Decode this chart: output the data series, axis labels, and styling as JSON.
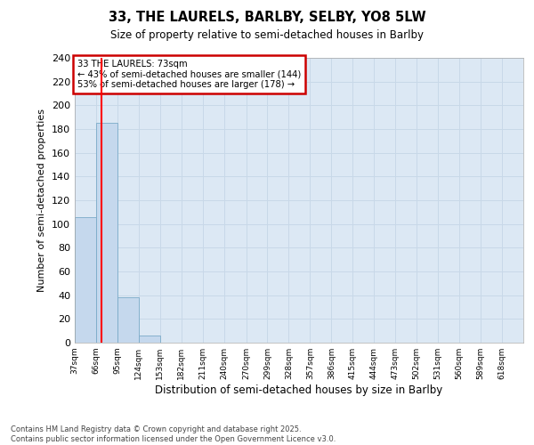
{
  "title1": "33, THE LAURELS, BARLBY, SELBY, YO8 5LW",
  "title2": "Size of property relative to semi-detached houses in Barlby",
  "xlabel": "Distribution of semi-detached houses by size in Barlby",
  "ylabel": "Number of semi-detached properties",
  "bin_labels": [
    "37sqm",
    "66sqm",
    "95sqm",
    "124sqm",
    "153sqm",
    "182sqm",
    "211sqm",
    "240sqm",
    "270sqm",
    "299sqm",
    "328sqm",
    "357sqm",
    "386sqm",
    "415sqm",
    "444sqm",
    "473sqm",
    "502sqm",
    "531sqm",
    "560sqm",
    "589sqm",
    "618sqm"
  ],
  "bin_edges": [
    37,
    66,
    95,
    124,
    153,
    182,
    211,
    240,
    270,
    299,
    328,
    357,
    386,
    415,
    444,
    473,
    502,
    531,
    560,
    589,
    618
  ],
  "bar_heights": [
    106,
    185,
    38,
    6,
    0,
    0,
    0,
    0,
    0,
    0,
    0,
    0,
    0,
    0,
    0,
    0,
    0,
    0,
    0,
    0
  ],
  "bar_color": "#c5d8ed",
  "bar_edge_color": "#7aaac8",
  "red_line_x": 73,
  "ylim": [
    0,
    240
  ],
  "yticks": [
    0,
    20,
    40,
    60,
    80,
    100,
    120,
    140,
    160,
    180,
    200,
    220,
    240
  ],
  "annotation_text": "33 THE LAURELS: 73sqm\n← 43% of semi-detached houses are smaller (144)\n53% of semi-detached houses are larger (178) →",
  "annotation_box_color": "#ffffff",
  "annotation_box_edge": "#cc0000",
  "footer_text": "Contains HM Land Registry data © Crown copyright and database right 2025.\nContains public sector information licensed under the Open Government Licence v3.0.",
  "grid_color": "#c8d8e8",
  "bg_color": "#dce8f4",
  "fig_bg_color": "#ffffff"
}
